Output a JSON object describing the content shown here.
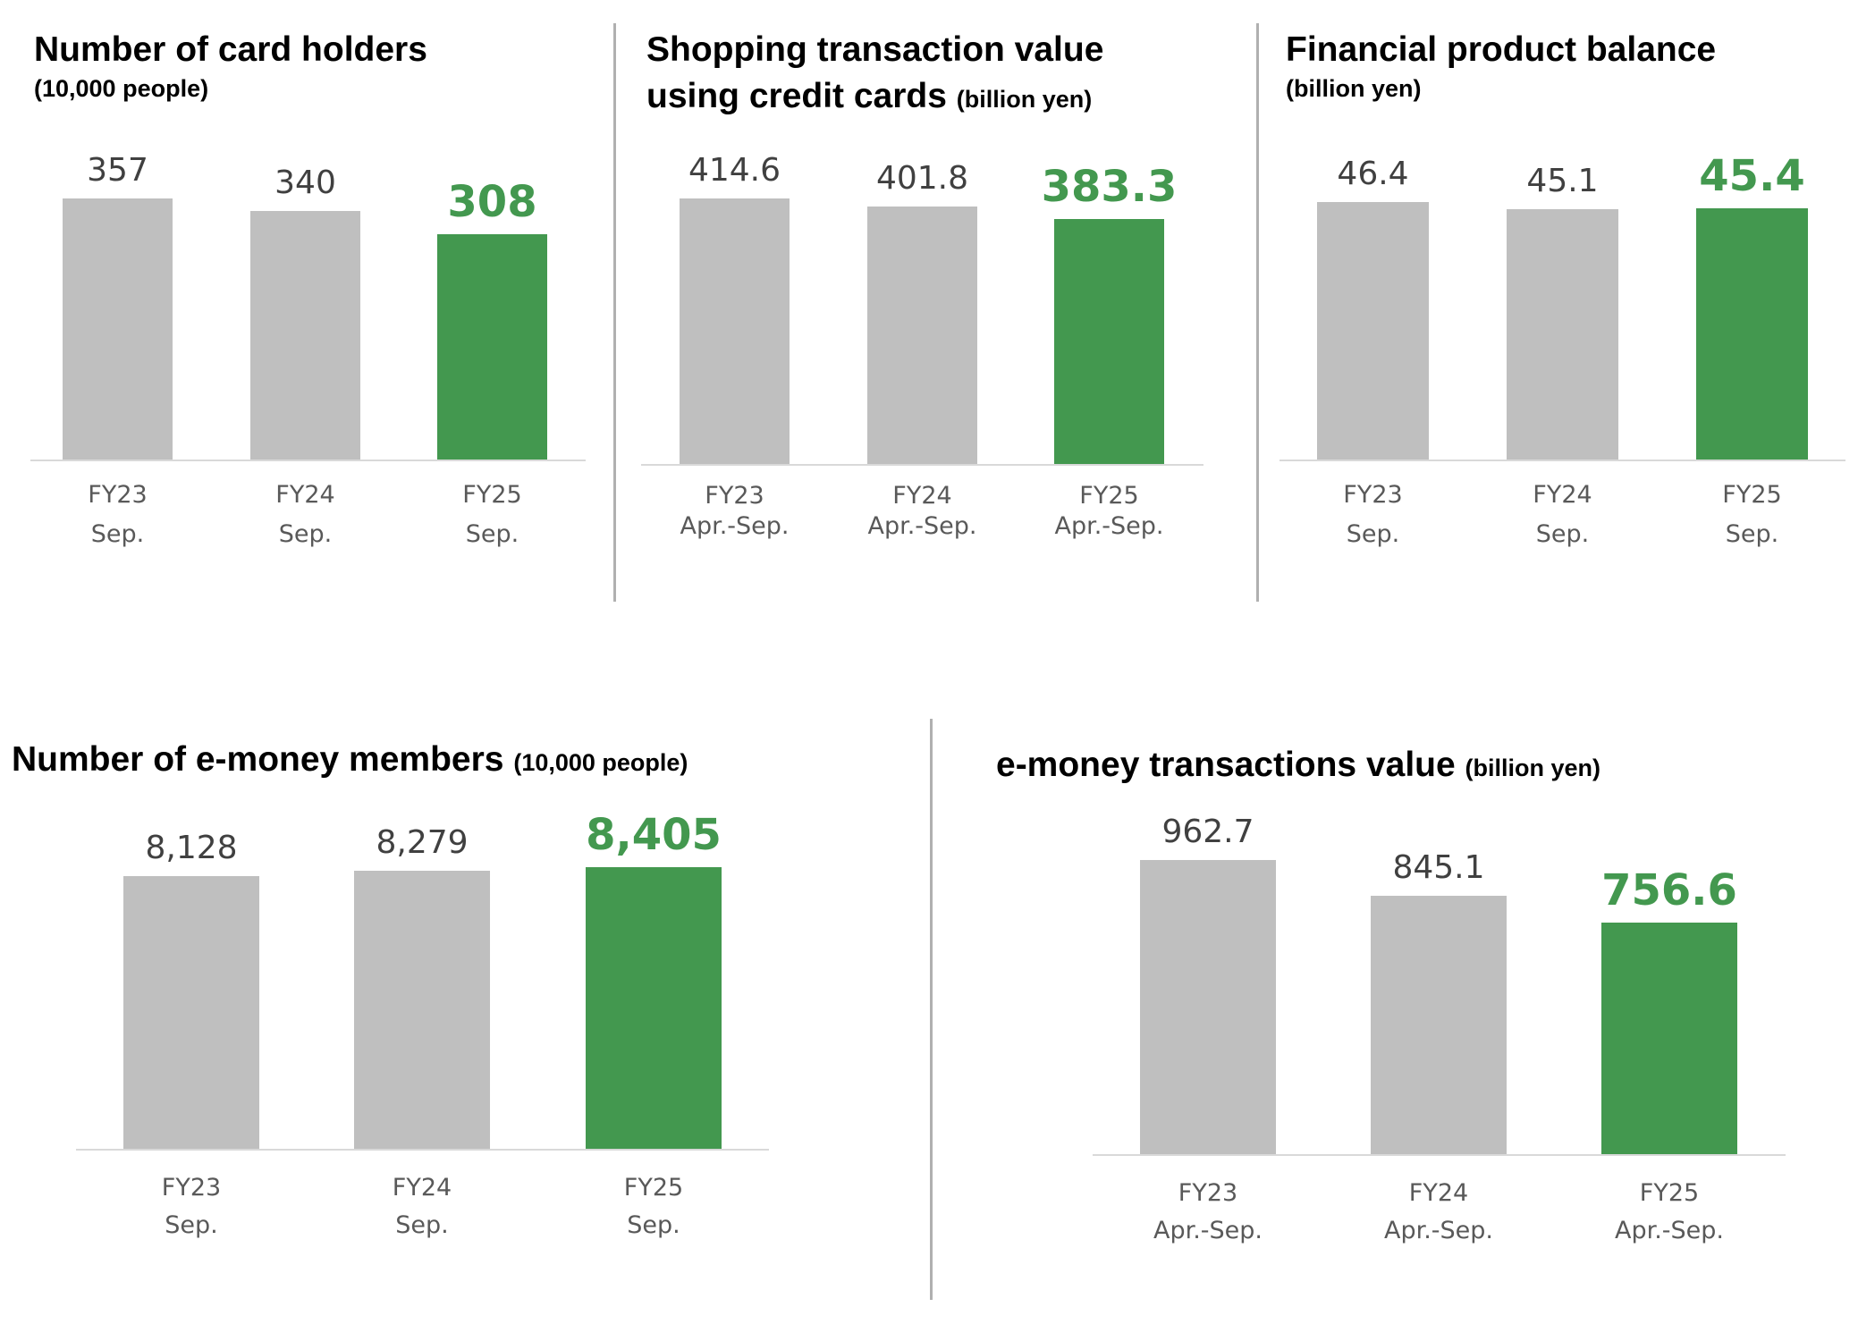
{
  "colors": {
    "highlight": "#43984f",
    "previous": "#bfbfbf",
    "value_text": "#404040"
  },
  "chart_data": [
    {
      "type": "bar",
      "title": "Number of card holders",
      "unit": "(10,000 people)",
      "categories": [
        [
          "FY23",
          "Sep."
        ],
        [
          "FY24",
          "Sep."
        ],
        [
          "FY25",
          "Sep."
        ]
      ],
      "values": [
        357,
        340,
        308
      ],
      "labels": [
        "357",
        "340",
        "308"
      ],
      "highlight_index": 2
    },
    {
      "type": "bar",
      "title": "Shopping transaction value",
      "title_line2": "using credit cards",
      "unit": "(billion yen)",
      "categories": [
        [
          "FY23",
          "Apr.-Sep."
        ],
        [
          "FY24",
          "Apr.-Sep."
        ],
        [
          "FY25",
          "Apr.-Sep."
        ]
      ],
      "values": [
        414.6,
        401.8,
        383.3
      ],
      "labels": [
        "414.6",
        "401.8",
        "383.3"
      ],
      "highlight_index": 2
    },
    {
      "type": "bar",
      "title": "Financial product balance",
      "unit": "(billion yen)",
      "categories": [
        [
          "FY23",
          "Sep."
        ],
        [
          "FY24",
          "Sep."
        ],
        [
          "FY25",
          "Sep."
        ]
      ],
      "values": [
        46.4,
        45.1,
        45.4
      ],
      "labels": [
        "46.4",
        "45.1",
        "45.4"
      ],
      "highlight_index": 2
    },
    {
      "type": "bar",
      "title": "Number of e-money members",
      "unit": "(10,000 people)",
      "categories": [
        [
          "FY23",
          "Sep."
        ],
        [
          "FY24",
          "Sep."
        ],
        [
          "FY25",
          "Sep."
        ]
      ],
      "values": [
        8128,
        8279,
        8405
      ],
      "labels": [
        "8,128",
        "8,279",
        "8,405"
      ],
      "highlight_index": 2
    },
    {
      "type": "bar",
      "title": "e-money transactions value",
      "unit": "(billion yen)",
      "categories": [
        [
          "FY23",
          "Apr.-Sep."
        ],
        [
          "FY24",
          "Apr.-Sep."
        ],
        [
          "FY25",
          "Apr.-Sep."
        ]
      ],
      "values": [
        962.7,
        845.1,
        756.6
      ],
      "labels": [
        "962.7",
        "845.1",
        "756.6"
      ],
      "highlight_index": 2
    }
  ]
}
